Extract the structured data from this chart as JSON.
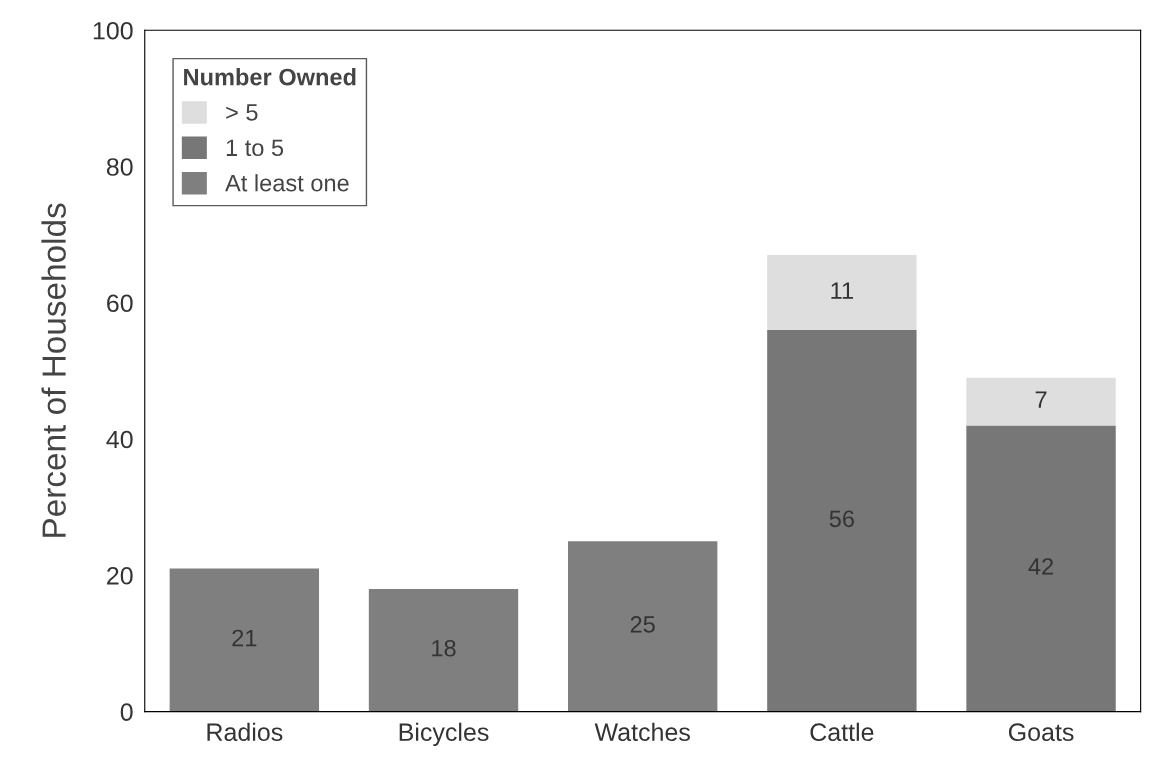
{
  "chart_data": {
    "type": "bar",
    "stacked": true,
    "ylabel": "Percent of Households",
    "categories": [
      "Radios",
      "Bicycles",
      "Watches",
      "Cattle",
      "Goats"
    ],
    "series": [
      {
        "name": "At least one",
        "color": "#7f7f7f",
        "values": [
          21,
          18,
          25,
          null,
          null
        ]
      },
      {
        "name": "1 to 5",
        "color": "#777777",
        "values": [
          null,
          null,
          null,
          56,
          42
        ]
      },
      {
        "name": "> 5",
        "color": "#dedede",
        "values": [
          null,
          null,
          null,
          11,
          7
        ]
      }
    ],
    "legend_title": "Number Owned",
    "legend": "top left",
    "data_labels": true,
    "grid": false,
    "ylim": [
      0,
      100
    ],
    "yticks": [
      0,
      20,
      40,
      60,
      80,
      100
    ]
  }
}
